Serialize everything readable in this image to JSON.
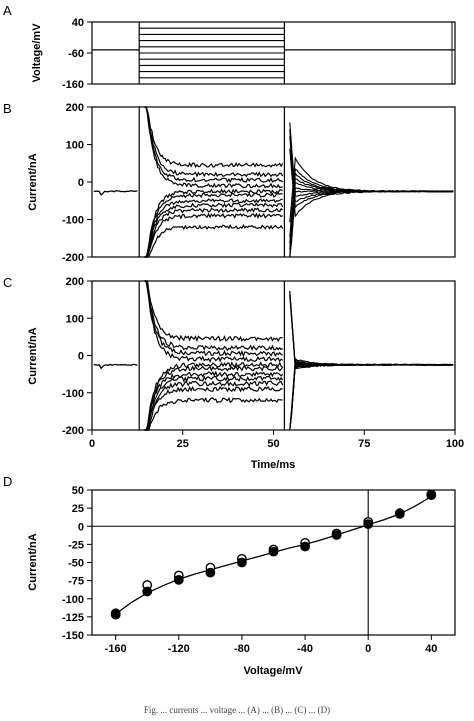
{
  "caption_fragment": "Fig. ... currents ... voltage ... (A) ... (B) ... (C) ... (D)",
  "chart_data": [
    {
      "panel": "A",
      "type": "line",
      "ylabel": "Voltage/mV",
      "xlim": [
        0,
        100
      ],
      "ylim": [
        -160,
        40
      ],
      "yticks": [
        40,
        -60,
        -160
      ],
      "holding_mV": -50,
      "step_start_ms": 13,
      "step_end_ms": 53,
      "end_marker_ms": 100,
      "step_levels_mV": [
        40,
        20,
        0,
        -20,
        -40,
        -60,
        -80,
        -100,
        -120,
        -140,
        -160
      ],
      "color": "#000000"
    },
    {
      "panel": "B",
      "type": "line",
      "ylabel": "Current/nA",
      "xlim": [
        0,
        100
      ],
      "ylim": [
        -200,
        200
      ],
      "yticks": [
        200,
        100,
        0,
        -100,
        -200
      ],
      "baseline_nA": -25,
      "step_start_ms": 13,
      "step_end_ms": 53,
      "steady_state_nA": [
        45,
        20,
        5,
        -10,
        -25,
        -35,
        -50,
        -62,
        -75,
        -90,
        -120
      ],
      "tail_spread_nA": 70,
      "noise_nA": 5,
      "color": "#000000"
    },
    {
      "panel": "C",
      "type": "line",
      "ylabel": "Current/nA",
      "xlabel": "Time/ms",
      "xlim": [
        0,
        100
      ],
      "ylim": [
        -200,
        200
      ],
      "yticks": [
        200,
        100,
        0,
        -100,
        -200
      ],
      "xticks": [
        0,
        25,
        50,
        75,
        100
      ],
      "baseline_nA": -25,
      "step_start_ms": 13,
      "step_end_ms": 53,
      "steady_state_nA": [
        45,
        20,
        5,
        -10,
        -25,
        -35,
        -50,
        -62,
        -75,
        -90,
        -120
      ],
      "tail_spread_nA": 12,
      "noise_nA": 6,
      "color": "#000000"
    },
    {
      "panel": "D",
      "type": "scatter",
      "xlabel": "Voltage/mV",
      "ylabel": "Current/nA",
      "xlim": [
        -175,
        55
      ],
      "ylim": [
        -150,
        50
      ],
      "xticks": [
        -160,
        -120,
        -80,
        -40,
        0,
        40
      ],
      "yticks": [
        50,
        25,
        0,
        -25,
        -50,
        -75,
        -100,
        -125,
        -150
      ],
      "series": [
        {
          "marker": "open-circle",
          "x": [
            -160,
            -140,
            -120,
            -100,
            -80,
            -60,
            -40,
            -20,
            0,
            20,
            40
          ],
          "y": [
            -122,
            -81,
            -68,
            -57,
            -45,
            -32,
            -23,
            -10,
            6,
            18,
            44
          ]
        },
        {
          "marker": "filled-circle",
          "x": [
            -160,
            -140,
            -120,
            -100,
            -80,
            -60,
            -40,
            -20,
            0,
            20,
            40
          ],
          "y": [
            -120,
            -90,
            -74,
            -64,
            -50,
            -35,
            -28,
            -12,
            3,
            17,
            43
          ]
        }
      ],
      "fit_curve": {
        "x": [
          -160,
          -150,
          -140,
          -130,
          -120,
          -110,
          -100,
          -90,
          -80,
          -70,
          -60,
          -50,
          -40,
          -30,
          -20,
          -10,
          0,
          10,
          20,
          30,
          40
        ],
        "y": [
          -121,
          -105,
          -92,
          -82,
          -73,
          -66,
          -60,
          -54,
          -48,
          -42,
          -36,
          -30,
          -25,
          -19,
          -12,
          -5,
          2,
          9,
          17,
          28,
          41
        ]
      },
      "color": "#000000"
    }
  ]
}
